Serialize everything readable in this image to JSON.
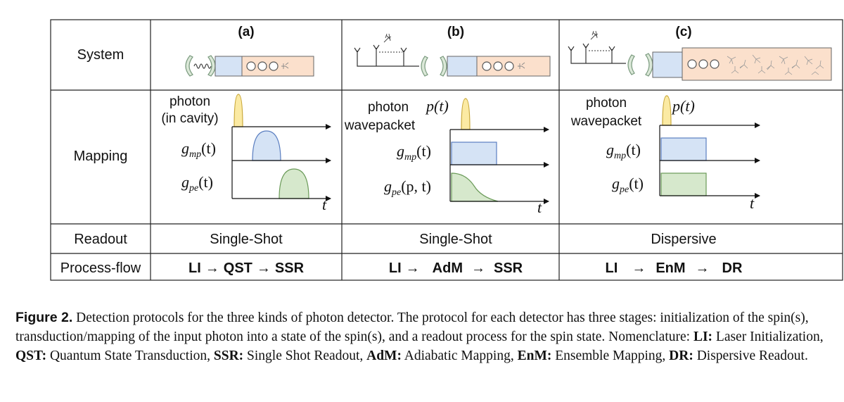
{
  "rows": {
    "system": "System",
    "mapping": "Mapping",
    "readout": "Readout",
    "process": "Process-flow"
  },
  "panels": [
    {
      "label": "(a)",
      "curve_labels": [
        "photon",
        "(in cavity)",
        "g",
        "mp",
        "(t)",
        "g",
        "pe",
        "(t)"
      ],
      "t_label": "t",
      "readout": "Single-Shot",
      "process": [
        "LI",
        "→",
        "QST",
        "→",
        "SSR"
      ]
    },
    {
      "label": "(b)",
      "curve_labels": [
        "photon",
        "wavepacket",
        "p(t)",
        "g",
        "mp",
        "(t)",
        "g",
        "pe",
        "(p, t)"
      ],
      "t_label": "t",
      "readout": "Single-Shot",
      "process": [
        "LI",
        "→",
        "AdM",
        "→",
        "SSR"
      ]
    },
    {
      "label": "(c)",
      "curve_labels": [
        "photon",
        "wavepacket",
        "p(t)",
        "g",
        "mp",
        "(t)",
        "g",
        "pe",
        "(t)"
      ],
      "t_label": "t",
      "readout": "Dispersive",
      "process": [
        "LI",
        "→",
        "EnM",
        "→",
        "DR"
      ]
    }
  ],
  "caption": {
    "label": "Figure 2.",
    "text1": " Detection protocols for the three kinds of photon detector. The protocol for each detector has three stages: initialization of the spin(s), transduction/mapping of the input photon into a state of the spin(s), and a readout process for the spin state. Nomenclature: ",
    "t1": "LI:",
    "d1": " Laser Initialization, ",
    "t2": "QST:",
    "d2": " Quantum State Transduction, ",
    "t3": "SSR:",
    "d3": " Single Shot Readout, ",
    "t4": "AdM:",
    "d4": " Adiabatic Mapping, ",
    "t5": "EnM:",
    "d5": " Ensemble Mapping, ",
    "t6": "DR:",
    "d6": " Dispersive Readout."
  },
  "colors": {
    "photon_fill": "#fbeaa3",
    "photon_stroke": "#c9a83a",
    "blue_fill": "#d5e3f5",
    "blue_stroke": "#5a7ec0",
    "green_fill": "#d6e8cc",
    "green_stroke": "#6a9a58",
    "ensemble_fill": "#fbe0cc",
    "mirror": "#7a9a7e",
    "grid": "#222222"
  }
}
